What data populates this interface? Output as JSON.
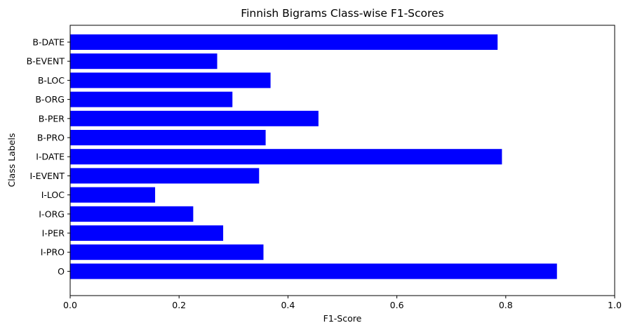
{
  "chart_data": {
    "type": "bar",
    "orientation": "horizontal",
    "title": "Finnish Bigrams Class-wise F1-Scores",
    "xlabel": "F1-Score",
    "ylabel": "Class Labels",
    "xlim": [
      0,
      1.0
    ],
    "xticks": [
      "0.0",
      "0.2",
      "0.4",
      "0.6",
      "0.8",
      "1.0"
    ],
    "bar_color": "#0000ff",
    "grid": false,
    "categories": [
      "B-DATE",
      "B-EVENT",
      "B-LOC",
      "B-ORG",
      "B-PER",
      "B-PRO",
      "I-DATE",
      "I-EVENT",
      "I-LOC",
      "I-ORG",
      "I-PER",
      "I-PRO",
      "O"
    ],
    "values": [
      0.785,
      0.27,
      0.368,
      0.298,
      0.456,
      0.359,
      0.793,
      0.347,
      0.156,
      0.226,
      0.281,
      0.355,
      0.894
    ]
  }
}
